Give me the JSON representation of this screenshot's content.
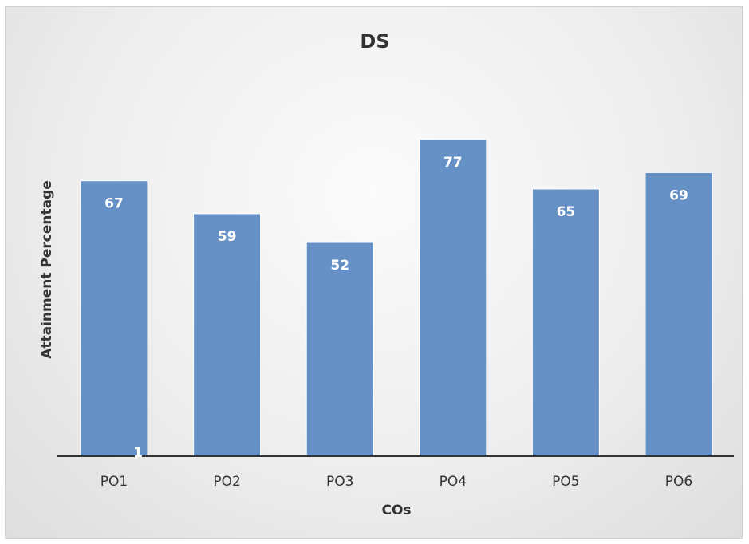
{
  "chart_data": {
    "type": "bar",
    "title": "DS",
    "xlabel": "COs",
    "ylabel": "Attainment Percentage",
    "categories": [
      "PO1",
      "PO2",
      "PO3",
      "PO4",
      "PO5",
      "PO6"
    ],
    "values": [
      67,
      59,
      52,
      77,
      65,
      69
    ],
    "ylim": [
      0,
      78
    ],
    "grid": false,
    "legend": "none",
    "annotations": [
      "1"
    ],
    "colors": {
      "bar": "#6591c6",
      "bar_edge": "#ffffff",
      "axis": "#333333"
    }
  }
}
